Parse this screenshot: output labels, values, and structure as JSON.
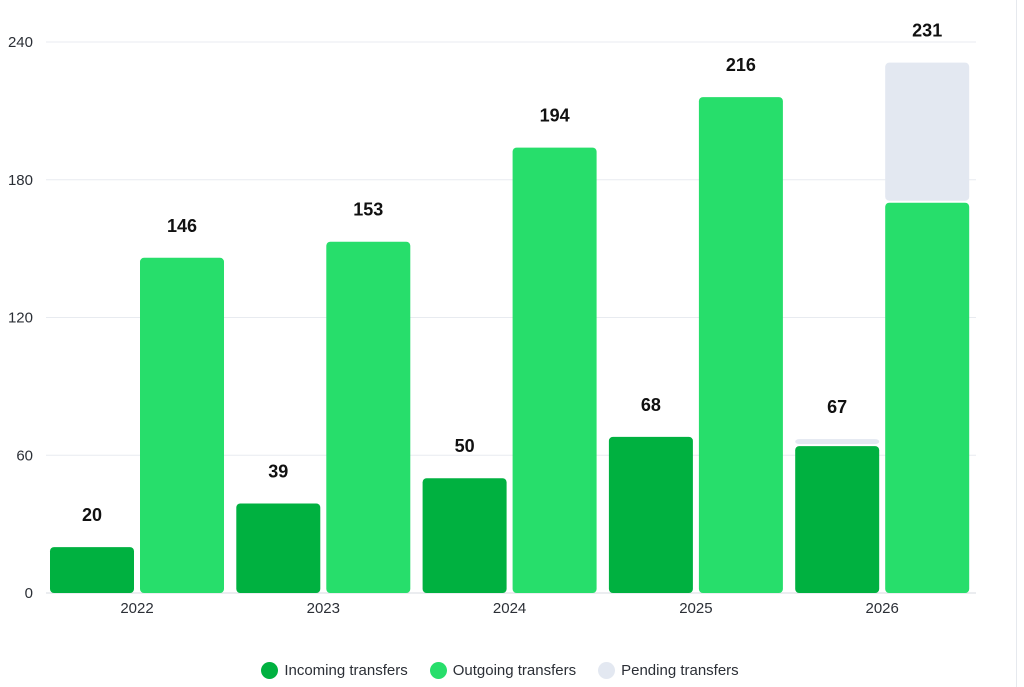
{
  "chart_data": {
    "type": "bar",
    "categories": [
      "2022",
      "2023",
      "2024",
      "2025",
      "2026"
    ],
    "series": [
      {
        "name": "Incoming transfers",
        "color": "#00b140",
        "values": [
          20,
          39,
          50,
          68,
          64
        ],
        "pending": [
          0,
          0,
          0,
          0,
          3
        ],
        "totals": [
          20,
          39,
          50,
          68,
          67
        ]
      },
      {
        "name": "Outgoing transfers",
        "color": "#27de6b",
        "values": [
          146,
          153,
          194,
          216,
          170
        ],
        "pending": [
          0,
          0,
          0,
          0,
          61
        ],
        "totals": [
          146,
          153,
          194,
          216,
          231
        ]
      }
    ],
    "pending": {
      "name": "Pending transfers",
      "color": "#e3e8f1"
    },
    "yticks": [
      0,
      60,
      120,
      180,
      240
    ],
    "ylim": [
      0,
      240
    ],
    "grid": true,
    "legend_position": "bottom-center",
    "title": "",
    "xlabel": "",
    "ylabel": ""
  }
}
